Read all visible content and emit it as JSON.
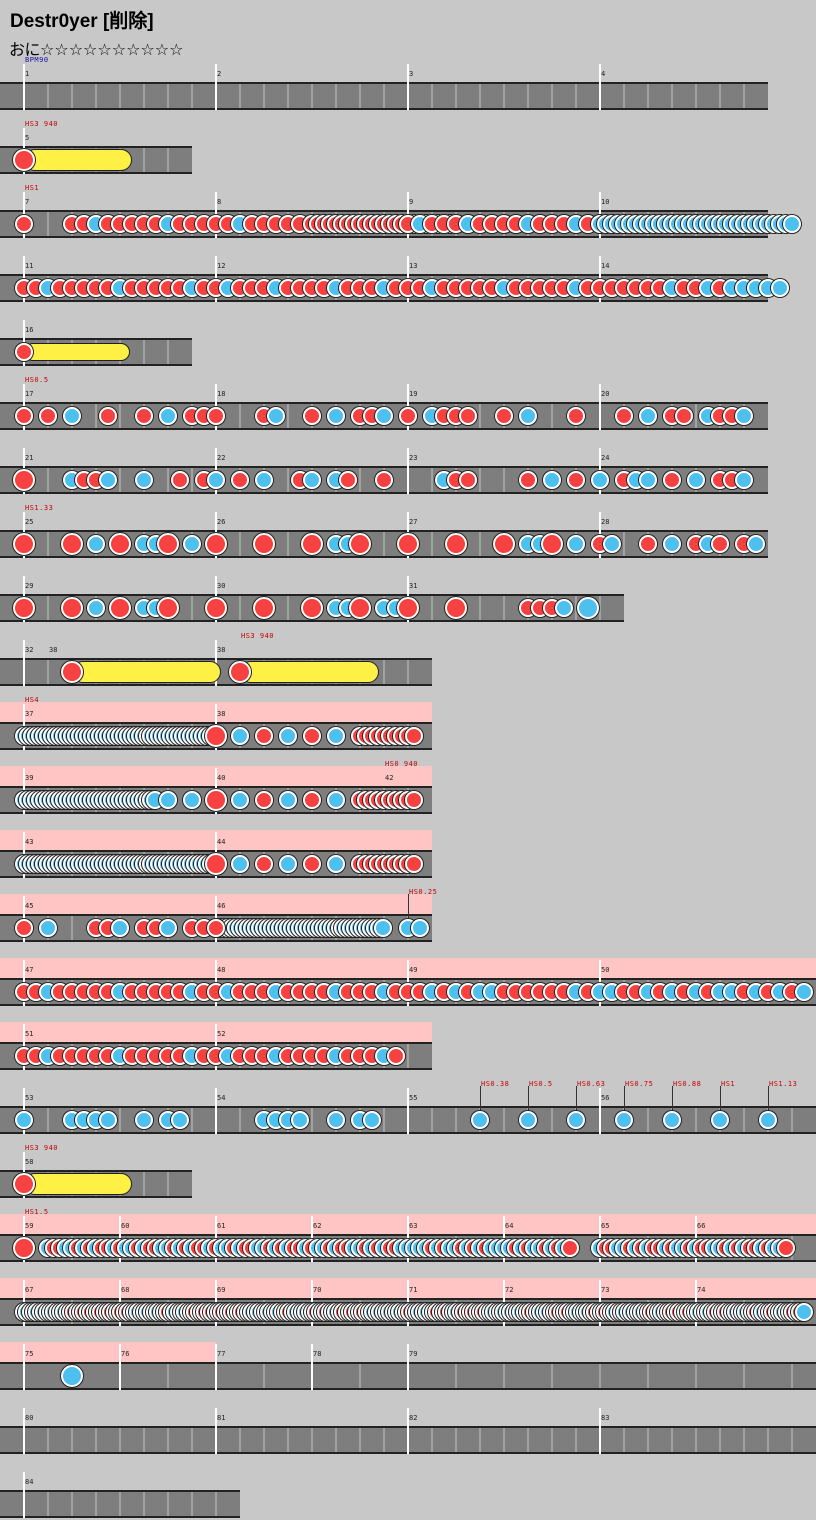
{
  "header": {
    "title": "Destr0yer [削除]",
    "difficulty": "おに",
    "stars": "☆☆☆☆☆☆☆☆☆☆"
  },
  "colors": {
    "background": "#c8c8c8",
    "lane": "#7e7e7e",
    "don": "#f74141",
    "ka": "#4ec0f0",
    "roll": "#fff046",
    "gogo": "#ffc4c4",
    "label_red": "#c80000",
    "label_blue": "#1010a0"
  },
  "rows": [
    {
      "top": 82,
      "bars": [
        1,
        2,
        3,
        4
      ],
      "beats": 16,
      "labels": [
        {
          "text": "BPM90",
          "color": "blue",
          "at": 0
        }
      ]
    },
    {
      "top": 146,
      "bars": [
        5
      ],
      "beats": 4,
      "labels": [
        {
          "text": "HS3 940",
          "at": 0
        }
      ],
      "notes": [
        {
          "type": "don",
          "big": true,
          "at": 0
        }
      ],
      "rolls": [
        {
          "from": 0,
          "to": 2.25,
          "big": true
        }
      ]
    },
    {
      "top": 210,
      "bars": [
        7,
        8,
        9,
        10
      ],
      "beats": 16,
      "labels": [
        {
          "text": "HS1",
          "at": 0
        }
      ],
      "runs": [
        [
          0,
          0,
          "d"
        ],
        [
          1,
          12,
          "mix1"
        ],
        [
          6,
          9,
          "dk"
        ],
        [
          8,
          16,
          "mix2"
        ],
        [
          12,
          16,
          "kk"
        ]
      ]
    },
    {
      "top": 274,
      "bars": [
        11,
        12,
        13,
        14
      ],
      "beats": 16,
      "runs": [
        [
          0,
          4,
          "mix1"
        ],
        [
          4,
          8,
          "mix2"
        ],
        [
          8,
          12,
          "mix1"
        ],
        [
          12,
          16,
          "mix3"
        ]
      ]
    },
    {
      "top": 338,
      "bars": [
        16
      ],
      "beats": 4,
      "notes": [
        {
          "type": "don",
          "at": 0
        }
      ],
      "rolls": [
        {
          "from": 0,
          "to": 2.2
        }
      ]
    },
    {
      "top": 402,
      "bars": [
        17,
        18,
        19,
        20
      ],
      "beats": 16,
      "labels": [
        {
          "text": "HS0.5",
          "at": 0
        }
      ],
      "notes": [
        [
          "d",
          0
        ],
        [
          "d",
          0.5
        ],
        [
          "k",
          1
        ],
        [
          "d",
          1.75
        ],
        [
          "d",
          2.5
        ],
        [
          "k",
          3
        ],
        [
          "d",
          3.5
        ],
        [
          "d",
          3.75
        ],
        [
          "d",
          4
        ],
        [
          "d",
          5
        ],
        [
          "k",
          5.25
        ],
        [
          "d",
          6
        ],
        [
          "k",
          6.5
        ],
        [
          "d",
          7
        ],
        [
          "d",
          7.25
        ],
        [
          "k",
          7.5
        ],
        [
          "d",
          8
        ],
        [
          "k",
          8.5
        ],
        [
          "d",
          8.75
        ],
        [
          "d",
          9
        ],
        [
          "d",
          9.25
        ],
        [
          "d",
          10
        ],
        [
          "k",
          10.5
        ],
        [
          "d",
          11.5
        ],
        [
          "d",
          12.5
        ],
        [
          "k",
          13
        ],
        [
          "d",
          13.5
        ],
        [
          "d",
          13.75
        ],
        [
          "k",
          14.25
        ],
        [
          "d",
          14.5
        ],
        [
          "d",
          14.75
        ],
        [
          "k",
          15
        ]
      ]
    },
    {
      "top": 466,
      "bars": [
        21,
        22,
        23,
        24
      ],
      "beats": 16,
      "notes": [
        [
          "d",
          0,
          1
        ],
        [
          "k",
          1
        ],
        [
          "d",
          1.25
        ],
        [
          "d",
          1.5
        ],
        [
          "k",
          1.75
        ],
        [
          "k",
          2.5
        ],
        [
          "d",
          3.25
        ],
        [
          "d",
          3.75
        ],
        [
          "k",
          4
        ],
        [
          "d",
          4.5
        ],
        [
          "k",
          5
        ],
        [
          "d",
          5.75
        ],
        [
          "k",
          6
        ],
        [
          "k",
          6.5
        ],
        [
          "d",
          6.75
        ],
        [
          "d",
          7.5
        ],
        [
          "k",
          8.75
        ],
        [
          "d",
          9
        ],
        [
          "d",
          9.25
        ],
        [
          "d",
          10.5
        ],
        [
          "k",
          11
        ],
        [
          "d",
          11.5
        ],
        [
          "k",
          12
        ],
        [
          "d",
          12.5
        ],
        [
          "k",
          12.75
        ],
        [
          "k",
          13
        ],
        [
          "d",
          13.5
        ],
        [
          "k",
          14
        ],
        [
          "d",
          14.5
        ],
        [
          "d",
          14.75
        ],
        [
          "k",
          15
        ]
      ]
    },
    {
      "top": 530,
      "bars": [
        25,
        26,
        27,
        28
      ],
      "beats": 16,
      "labels": [
        {
          "text": "HS1.33",
          "at": 0
        }
      ],
      "notes": [
        [
          "d",
          0,
          1
        ],
        [
          "d",
          1,
          1
        ],
        [
          "k",
          1.5
        ],
        [
          "d",
          2,
          1
        ],
        [
          "k",
          2.5
        ],
        [
          "k",
          2.75
        ],
        [
          "d",
          3,
          1
        ],
        [
          "k",
          3.5
        ],
        [
          "d",
          4,
          1
        ],
        [
          "d",
          5,
          1
        ],
        [
          "d",
          6,
          1
        ],
        [
          "k",
          6.5
        ],
        [
          "k",
          6.75
        ],
        [
          "d",
          7,
          1
        ],
        [
          "d",
          8,
          1
        ],
        [
          "d",
          9,
          1
        ],
        [
          "d",
          10,
          1
        ],
        [
          "k",
          10.5
        ],
        [
          "k",
          10.75
        ],
        [
          "d",
          11,
          1
        ],
        [
          "k",
          11.5
        ],
        [
          "d",
          12
        ],
        [
          "k",
          12.25
        ],
        [
          "d",
          13
        ],
        [
          "k",
          13.5
        ],
        [
          "d",
          14
        ],
        [
          "k",
          14.25
        ],
        [
          "d",
          14.5
        ],
        [
          "d",
          15
        ],
        [
          "k",
          15.25
        ]
      ]
    },
    {
      "top": 594,
      "bars": [
        29,
        30,
        31
      ],
      "beats": 13,
      "notes": [
        [
          "d",
          0,
          1
        ],
        [
          "d",
          1,
          1
        ],
        [
          "k",
          1.5
        ],
        [
          "d",
          2,
          1
        ],
        [
          "k",
          2.5
        ],
        [
          "k",
          2.75
        ],
        [
          "d",
          3,
          1
        ],
        [
          "d",
          4,
          1
        ],
        [
          "d",
          5,
          1
        ],
        [
          "d",
          6,
          1
        ],
        [
          "k",
          6.5
        ],
        [
          "k",
          6.75
        ],
        [
          "d",
          7,
          1
        ],
        [
          "k",
          7.5
        ],
        [
          "k",
          7.75
        ],
        [
          "d",
          8,
          1
        ],
        [
          "d",
          9,
          1
        ],
        [
          "d",
          10.5
        ],
        [
          "d",
          10.75
        ],
        [
          "d",
          11
        ],
        [
          "k",
          11.25
        ],
        [
          "k",
          11.75,
          1
        ]
      ]
    },
    {
      "top": 658,
      "bars": [
        32,
        36
      ],
      "beats": 9,
      "numOverride": [
        "32",
        "38"
      ],
      "labels": [
        {
          "text": "HS3 940",
          "at": 4.5
        }
      ],
      "notes": [
        [
          "d",
          1,
          1
        ],
        [
          "d",
          4.5,
          1
        ]
      ],
      "rolls": [
        {
          "from": 1,
          "to": 4.1,
          "big": true
        },
        {
          "from": 4.5,
          "to": 7.4,
          "big": true
        }
      ]
    },
    {
      "top": 722,
      "bars": [
        37,
        38
      ],
      "beats": 9,
      "gogo": true,
      "labels": [
        {
          "text": "HS4",
          "at": 0
        }
      ],
      "runs": [
        [
          0,
          4,
          "kdense"
        ]
      ],
      "notes": [
        [
          "d",
          4,
          1
        ],
        [
          "k",
          4.5
        ],
        [
          "d",
          5
        ],
        [
          "k",
          5.5
        ],
        [
          "d",
          6
        ],
        [
          "k",
          6.5
        ]
      ],
      "runs2": [
        [
          7,
          8.2,
          "ddense"
        ]
      ]
    },
    {
      "top": 786,
      "bars": [
        39,
        40
      ],
      "beats": 9,
      "gogo": true,
      "labels": [
        {
          "text": "HS0 940",
          "at": 7.5
        }
      ],
      "numExtra": [
        {
          "text": "42",
          "at": 7.5
        }
      ],
      "runs": [
        [
          0,
          2.8,
          "kdense"
        ]
      ],
      "notes": [
        [
          "k",
          3
        ],
        [
          "k",
          3.5
        ],
        [
          "d",
          4,
          1
        ],
        [
          "k",
          4.5
        ],
        [
          "d",
          5
        ],
        [
          "k",
          5.5
        ],
        [
          "d",
          6
        ],
        [
          "k",
          6.5
        ]
      ],
      "runs2": [
        [
          7,
          8.2,
          "ddense"
        ]
      ]
    },
    {
      "top": 850,
      "bars": [
        43,
        44
      ],
      "beats": 9,
      "gogo": true,
      "runs": [
        [
          0,
          4,
          "kdense"
        ]
      ],
      "notes": [
        [
          "d",
          4,
          1
        ],
        [
          "k",
          4.5
        ],
        [
          "d",
          5
        ],
        [
          "k",
          5.5
        ],
        [
          "d",
          6
        ],
        [
          "k",
          6.5
        ]
      ],
      "runs2": [
        [
          7,
          8.2,
          "ddense"
        ]
      ]
    },
    {
      "top": 914,
      "bars": [
        45,
        46
      ],
      "beats": 9,
      "gogo": true,
      "labels": [
        {
          "text": "HS0.25",
          "at": 8,
          "tick": true
        }
      ],
      "notes": [
        [
          "d",
          0
        ],
        [
          "k",
          0.5
        ],
        [
          "d",
          1.5
        ],
        [
          "d",
          1.75
        ],
        [
          "k",
          2
        ],
        [
          "d",
          2.5
        ],
        [
          "d",
          2.75
        ],
        [
          "k",
          3
        ],
        [
          "d",
          3.5
        ],
        [
          "d",
          3.75
        ],
        [
          "d",
          4
        ],
        [
          "k",
          8
        ],
        [
          "k",
          8.25
        ]
      ],
      "runs": [
        [
          4,
          7.5,
          "kdense"
        ]
      ]
    },
    {
      "top": 978,
      "bars": [
        47,
        48,
        49,
        50
      ],
      "beats": 17,
      "gogo": true,
      "runs": [
        [
          0,
          4,
          "mix1"
        ],
        [
          4,
          8,
          "mix2"
        ],
        [
          8,
          12,
          "mix4"
        ],
        [
          12,
          16.5,
          "mix5"
        ]
      ]
    },
    {
      "top": 1042,
      "bars": [
        51,
        52
      ],
      "beats": 9,
      "gogo": true,
      "runs": [
        [
          0,
          4,
          "mix1"
        ],
        [
          4,
          8,
          "mix2"
        ]
      ]
    },
    {
      "top": 1106,
      "bars": [
        53,
        54,
        55,
        56
      ],
      "beats": 17,
      "labels": [
        {
          "text": "HS0.38",
          "at": 9.5,
          "tick": true
        },
        {
          "text": "HS0.5",
          "at": 10.5,
          "tick": true
        },
        {
          "text": "HS0.63",
          "at": 11.5,
          "tick": true
        },
        {
          "text": "HS0.75",
          "at": 12.5,
          "tick": true
        },
        {
          "text": "HS0.88",
          "at": 13.5,
          "tick": true
        },
        {
          "text": "HS1",
          "at": 14.5,
          "tick": true
        },
        {
          "text": "HS1.13",
          "at": 15.5,
          "tick": true
        }
      ],
      "notes": [
        [
          "k",
          0
        ],
        [
          "k",
          1
        ],
        [
          "k",
          1.25
        ],
        [
          "k",
          1.5
        ],
        [
          "k",
          1.75
        ],
        [
          "k",
          2.5
        ],
        [
          "k",
          3
        ],
        [
          "k",
          3.25
        ],
        [
          "k",
          5
        ],
        [
          "k",
          5.25
        ],
        [
          "k",
          5.5
        ],
        [
          "k",
          5.75
        ],
        [
          "k",
          6.5
        ],
        [
          "k",
          7
        ],
        [
          "k",
          7.25
        ],
        [
          "k",
          9.5
        ],
        [
          "k",
          10.5
        ],
        [
          "k",
          11.5
        ],
        [
          "k",
          12.5
        ],
        [
          "k",
          13.5
        ],
        [
          "k",
          14.5
        ],
        [
          "k",
          15.5
        ]
      ]
    },
    {
      "top": 1170,
      "bars": [
        58
      ],
      "beats": 4,
      "labels": [
        {
          "text": "HS3 940",
          "at": 0
        }
      ],
      "notes": [
        [
          "d",
          0,
          1
        ]
      ],
      "rolls": [
        {
          "from": 0,
          "to": 2.25,
          "big": true
        }
      ]
    },
    {
      "top": 1234,
      "bars": [
        59,
        60,
        61,
        62,
        63,
        64,
        65,
        66
      ],
      "beats": 17,
      "gogo": true,
      "half": true,
      "labels": [
        {
          "text": "HS1.5",
          "at": 0
        }
      ],
      "notes": [
        [
          "d",
          0,
          1
        ]
      ],
      "runs": [
        [
          0.5,
          8,
          "mix6"
        ],
        [
          8,
          11.5,
          "mix7"
        ],
        [
          12,
          16,
          "mix6"
        ]
      ]
    },
    {
      "top": 1298,
      "bars": [
        67,
        68,
        69,
        70,
        71,
        72,
        73,
        74
      ],
      "beats": 17,
      "gogo": true,
      "half": true,
      "runs": [
        [
          0,
          16.3,
          "mix8"
        ]
      ]
    },
    {
      "top": 1362,
      "bars": [
        75,
        76,
        77,
        78,
        79
      ],
      "beats": 17,
      "gogo": "partial",
      "half2": true,
      "notes": [
        [
          "k",
          1,
          1
        ]
      ]
    },
    {
      "top": 1426,
      "bars": [
        80,
        81,
        82,
        83
      ],
      "beats": 17
    },
    {
      "top": 1490,
      "bars": [
        84
      ],
      "beats": 5
    }
  ]
}
